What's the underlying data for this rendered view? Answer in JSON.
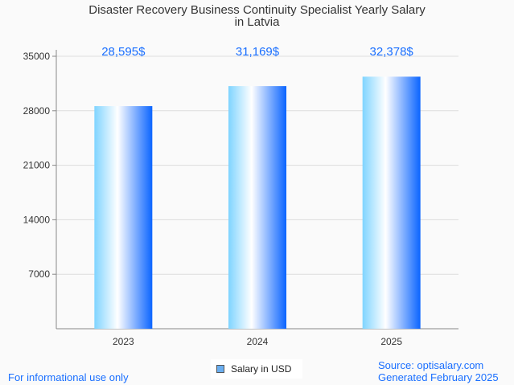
{
  "chart_data": {
    "type": "bar",
    "title": "Disaster Recovery Business Continuity Specialist Yearly Salary",
    "subtitle": "in Latvia",
    "categories": [
      "2023",
      "2024",
      "2025"
    ],
    "values": [
      28595,
      31169,
      32378
    ],
    "data_labels": [
      "28,595$",
      "31,169$",
      "32,378$"
    ],
    "yticks": [
      7000,
      14000,
      21000,
      28000,
      35000
    ],
    "ylim": [
      0,
      35000
    ],
    "legend": "Salary in USD",
    "legend_position": "bottom-center",
    "grid": true
  },
  "footer": {
    "disclaimer": "For informational use only",
    "source": "Source: optisalary.com",
    "generated": "Generated February 2025"
  },
  "colors": {
    "label": "#1a6fff",
    "bar_start": "#7fd4ff",
    "bar_end": "#0a64ff"
  }
}
